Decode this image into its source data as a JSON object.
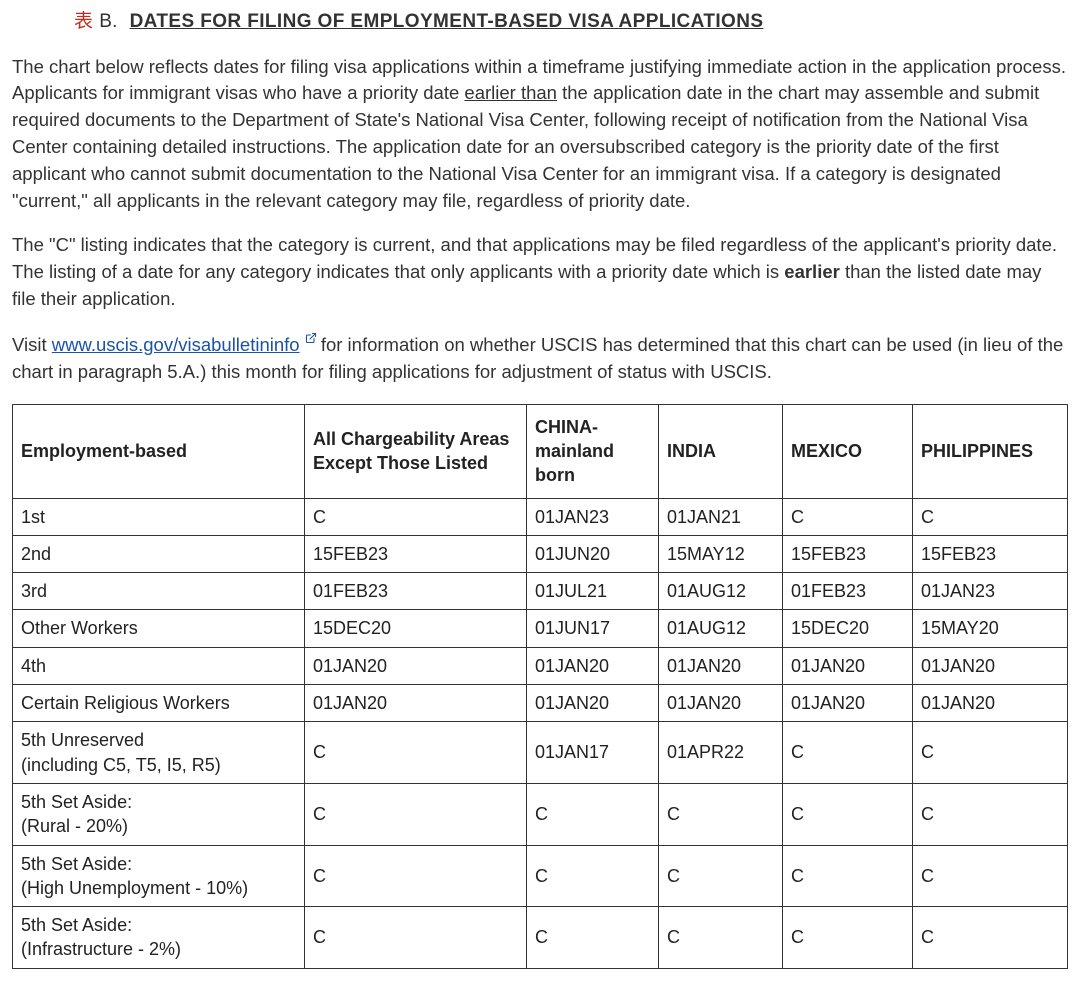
{
  "heading": {
    "label_char": "表",
    "section_letter": "B.",
    "title": "DATES FOR FILING OF EMPLOYMENT-BASED VISA APPLICATIONS"
  },
  "paragraphs": {
    "p1_a": "The chart below reflects dates for filing visa applications within a timeframe justifying immediate action in the application process. Applicants for immigrant visas who have a priority date ",
    "p1_u": "earlier than",
    "p1_b": " the application date in the chart may assemble and submit required documents to the Department of State's National Visa Center, following receipt of notification from the National Visa Center containing detailed instructions. The application date for an oversubscribed category is the priority date of the first applicant who cannot submit documentation to the National Visa Center for an immigrant visa. If a category is designated \"current,\" all applicants in the relevant category may file, regardless of priority date.",
    "p2_a": "The \"C\" listing indicates that the category is current, and that applications may be filed regardless of the applicant's priority date. The listing of a date for any category indicates that only applicants with a priority date which is ",
    "p2_bold": "earlier",
    "p2_b": " than the listed date may file their application.",
    "p3_a": "Visit ",
    "p3_link_text": "www.uscis.gov/visabulletininfo",
    "p3_link_href": "https://www.uscis.gov/visabulletininfo",
    "p3_b": " for information on whether USCIS has determined that this chart can be used (in lieu of the chart in paragraph 5.A.) this month for filing applications for adjustment of status with USCIS."
  },
  "table": {
    "columns": [
      "Employment-based",
      "All Chargeability Areas Except Those Listed",
      "CHINA-mainland born",
      "INDIA",
      "MEXICO",
      "PHILIPPINES"
    ],
    "rows": [
      [
        "1st",
        "C",
        "01JAN23",
        "01JAN21",
        "C",
        "C"
      ],
      [
        "2nd",
        "15FEB23",
        "01JUN20",
        "15MAY12",
        "15FEB23",
        "15FEB23"
      ],
      [
        "3rd",
        "01FEB23",
        "01JUL21",
        "01AUG12",
        "01FEB23",
        "01JAN23"
      ],
      [
        "Other Workers",
        "15DEC20",
        "01JUN17",
        "01AUG12",
        "15DEC20",
        "15MAY20"
      ],
      [
        "4th",
        "01JAN20",
        "01JAN20",
        "01JAN20",
        "01JAN20",
        "01JAN20"
      ],
      [
        "Certain Religious Workers",
        "01JAN20",
        "01JAN20",
        "01JAN20",
        "01JAN20",
        "01JAN20"
      ],
      [
        "5th Unreserved\n(including C5, T5, I5, R5)",
        "C",
        "01JAN17",
        "01APR22",
        "C",
        "C"
      ],
      [
        "5th Set Aside:\n(Rural - 20%)",
        "C",
        "C",
        "C",
        "C",
        "C"
      ],
      [
        "5th Set Aside:\n(High Unemployment - 10%)",
        "C",
        "C",
        "C",
        "C",
        "C"
      ],
      [
        "5th Set Aside:\n(Infrastructure - 2%)",
        "C",
        "C",
        "C",
        "C",
        "C"
      ]
    ]
  }
}
